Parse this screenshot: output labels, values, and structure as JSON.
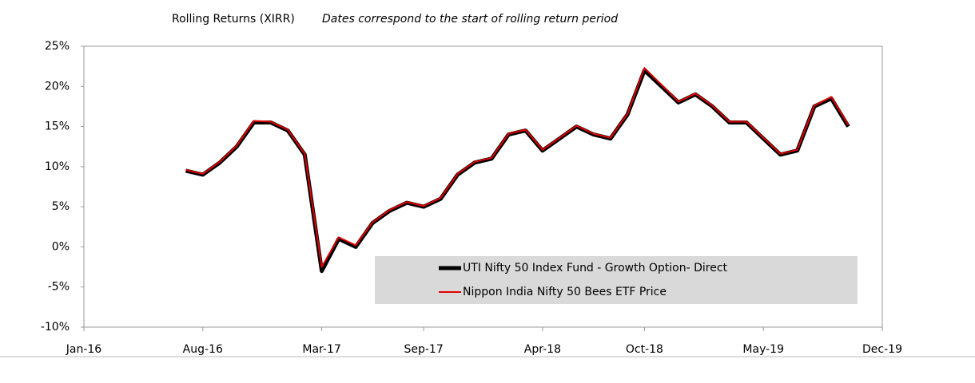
{
  "chart_data": {
    "type": "line",
    "title": "Rolling Returns (XIRR)",
    "subtitle": "Dates correspond to the start of rolling return period",
    "x": [
      "Jul-16",
      "Aug-16",
      "Sep-16",
      "Oct-16",
      "Nov-16",
      "Dec-16",
      "Jan-17",
      "Feb-17",
      "Mar-17",
      "Apr-17",
      "May-17",
      "Jun-17",
      "Jul-17",
      "Aug-17",
      "Sep-17",
      "Oct-17",
      "Nov-17",
      "Dec-17",
      "Jan-18",
      "Feb-18",
      "Mar-18",
      "Apr-18",
      "May-18",
      "Jun-18",
      "Jul-18",
      "Aug-18",
      "Sep-18",
      "Oct-18",
      "Nov-18",
      "Dec-18",
      "Jan-19",
      "Feb-19",
      "Mar-19",
      "Apr-19",
      "May-19",
      "Jun-19",
      "Jul-19",
      "Aug-19",
      "Sep-19",
      "Oct-19"
    ],
    "series": [
      {
        "name": "UTI Nifty 50 Index Fund - Growth Option- Direct",
        "color": "#000000",
        "values": [
          9.5,
          9,
          10.5,
          12.5,
          15.5,
          15.5,
          14.5,
          11.5,
          -3,
          1,
          0,
          3,
          4.5,
          5.5,
          5,
          6,
          9,
          10.5,
          11,
          14,
          14.5,
          12,
          13.5,
          15,
          14,
          13.5,
          16.5,
          22,
          20,
          18,
          19,
          17.5,
          15.5,
          15.5,
          13.5,
          11.5,
          12,
          17.5,
          18.5,
          15
        ]
      },
      {
        "name": "Nippon India Nifty 50 Bees ETF Price",
        "color": "#e00000",
        "values": [
          9.6,
          9.1,
          10.6,
          12.6,
          15.7,
          15.6,
          14.6,
          11.6,
          -2.5,
          1.2,
          0.2,
          3.1,
          4.6,
          5.6,
          5.1,
          6.1,
          9.1,
          10.6,
          11.1,
          14.1,
          14.6,
          12.1,
          13.6,
          15.1,
          14.1,
          13.6,
          16.6,
          22.3,
          20.2,
          18.1,
          19.1,
          17.6,
          15.6,
          15.6,
          13.6,
          11.6,
          12.1,
          17.6,
          18.7,
          15.2
        ]
      }
    ],
    "xlim": [
      "Jan-16",
      "Dec-19"
    ],
    "xticks": [
      "Jan-16",
      "Aug-16",
      "Mar-17",
      "Sep-17",
      "Apr-18",
      "Oct-18",
      "May-19",
      "Dec-19"
    ],
    "ylim": [
      -10,
      25
    ],
    "yticks": [
      {
        "value": -10,
        "label": "-10%"
      },
      {
        "value": -5,
        "label": "-5%"
      },
      {
        "value": 0,
        "label": "0%"
      },
      {
        "value": 5,
        "label": "5%"
      },
      {
        "value": 10,
        "label": "10%"
      },
      {
        "value": 15,
        "label": "15%"
      },
      {
        "value": 20,
        "label": "20%"
      },
      {
        "value": 25,
        "label": "25%"
      }
    ],
    "grid": false
  }
}
